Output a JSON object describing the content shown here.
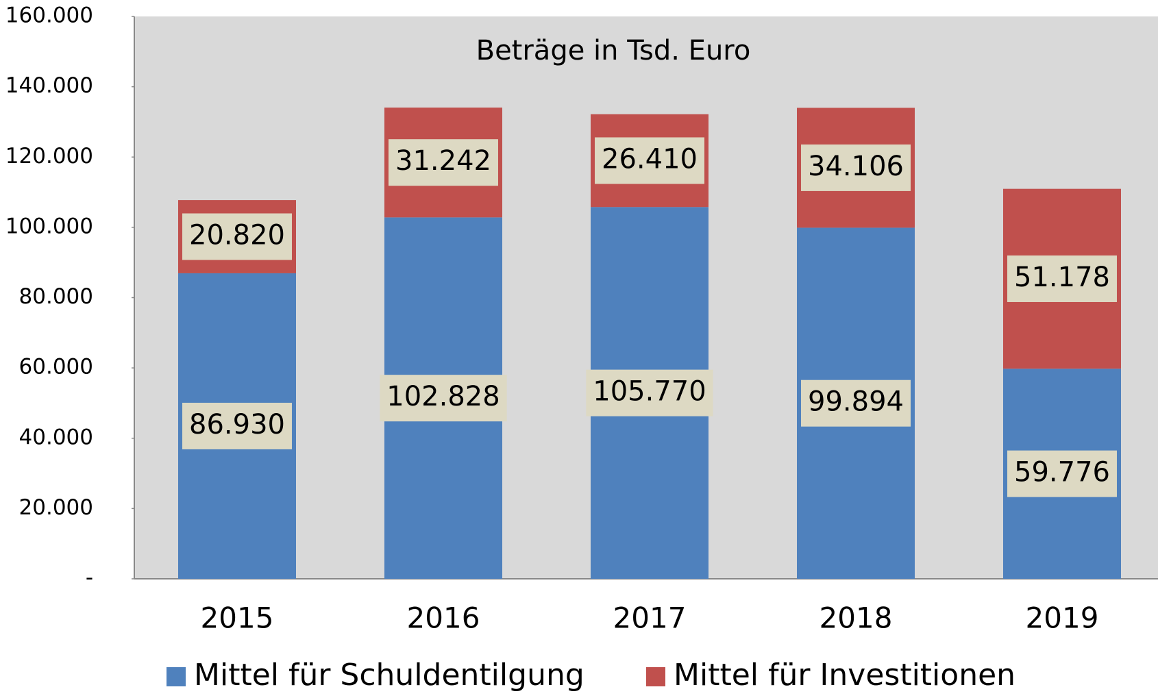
{
  "chart_data": {
    "type": "stacked_bar",
    "title": "Beträge in Tsd. Euro",
    "categories": [
      "2015",
      "2016",
      "2017",
      "2018",
      "2019"
    ],
    "series": [
      {
        "name": "Mittel für Schuldentilgung",
        "color": "#4f81bd",
        "values": [
          86930,
          102828,
          105770,
          99894,
          59776
        ],
        "value_labels": [
          "86.930",
          "102.828",
          "105.770",
          "99.894",
          "59.776"
        ]
      },
      {
        "name": "Mittel für Investitionen",
        "color": "#c0504d",
        "values": [
          20820,
          31242,
          26410,
          34106,
          51178
        ],
        "value_labels": [
          "20.820",
          "31.242",
          "26.410",
          "34.106",
          "51.178"
        ]
      }
    ],
    "ylim": [
      0,
      160000
    ],
    "yticks": [
      {
        "value": 0,
        "label": "-"
      },
      {
        "value": 20000,
        "label": "20.000"
      },
      {
        "value": 40000,
        "label": "40.000"
      },
      {
        "value": 60000,
        "label": "60.000"
      },
      {
        "value": 80000,
        "label": "80.000"
      },
      {
        "value": 100000,
        "label": "100.000"
      },
      {
        "value": 120000,
        "label": "120.000"
      },
      {
        "value": 140000,
        "label": "140.000"
      },
      {
        "value": 160000,
        "label": "160.000"
      }
    ],
    "plot_background": "#d9d9d9",
    "label_background": "#ddd9c3"
  }
}
